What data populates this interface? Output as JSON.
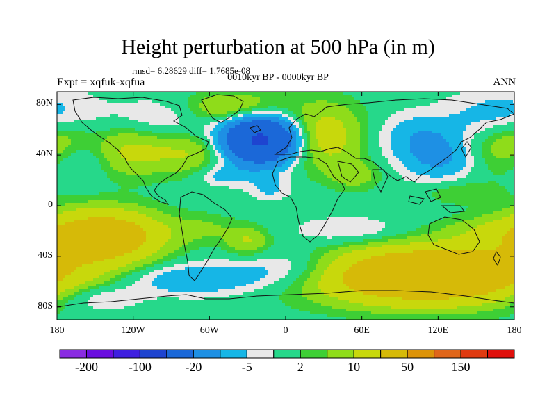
{
  "title": "Height perturbation at 500 hPa (in m)",
  "stats_line": "rmsd= 6.28629 diff= 1.7685e-08",
  "period": "0010kyr BP - 0000kyr BP",
  "experiment": "Expt = xqfuk-xqfua",
  "season": "ANN",
  "y_ticks": [
    "80N",
    "40N",
    "0",
    "40S",
    "80S"
  ],
  "x_ticks": [
    "180",
    "120W",
    "60W",
    "0",
    "60E",
    "120E",
    "180"
  ],
  "colorbar": {
    "colors": [
      "#8a2be2",
      "#6a0ddf",
      "#3f1fe0",
      "#1e44d0",
      "#1b68d8",
      "#1e90e4",
      "#16b6e6",
      "#e8e8e8",
      "#26d88a",
      "#3ecf35",
      "#8fdc1a",
      "#c8d80c",
      "#d6ba08",
      "#dc9308",
      "#e0661a",
      "#e03a10",
      "#e0100c"
    ],
    "labels": [
      "-200",
      "-100",
      "-20",
      "-5",
      "2",
      "10",
      "50",
      "150"
    ]
  },
  "anomaly_field": [
    {
      "lon": 170,
      "lat": 70,
      "sx": 30,
      "sy": 15,
      "a": -8
    },
    {
      "lon": -175,
      "lat": 52,
      "sx": 18,
      "sy": 12,
      "a": 8
    },
    {
      "lon": -160,
      "lat": 38,
      "sx": 18,
      "sy": 12,
      "a": -7
    },
    {
      "lon": -125,
      "lat": 43,
      "sx": 22,
      "sy": 14,
      "a": 12
    },
    {
      "lon": -95,
      "lat": 68,
      "sx": 28,
      "sy": 12,
      "a": -6
    },
    {
      "lon": -75,
      "lat": 42,
      "sx": 22,
      "sy": 12,
      "a": 10
    },
    {
      "lon": -40,
      "lat": 77,
      "sx": 28,
      "sy": 9,
      "a": 13
    },
    {
      "lon": -20,
      "lat": 52,
      "sx": 20,
      "sy": 13,
      "a": -55
    },
    {
      "lon": 30,
      "lat": 55,
      "sx": 22,
      "sy": 18,
      "a": 15
    },
    {
      "lon": -50,
      "lat": 24,
      "sx": 14,
      "sy": 6,
      "a": -7
    },
    {
      "lon": -12,
      "lat": 14,
      "sx": 12,
      "sy": 7,
      "a": -6
    },
    {
      "lon": 55,
      "lat": 24,
      "sx": 14,
      "sy": 8,
      "a": 7
    },
    {
      "lon": 105,
      "lat": 56,
      "sx": 24,
      "sy": 12,
      "a": -8
    },
    {
      "lon": 125,
      "lat": 37,
      "sx": 24,
      "sy": 12,
      "a": -12
    },
    {
      "lon": 160,
      "lat": 42,
      "sx": 22,
      "sy": 15,
      "a": 8
    },
    {
      "lon": 138,
      "lat": 10,
      "sx": 20,
      "sy": 6,
      "a": 5
    },
    {
      "lon": -145,
      "lat": -24,
      "sx": 32,
      "sy": 14,
      "a": 35
    },
    {
      "lon": -65,
      "lat": -18,
      "sx": 20,
      "sy": 8,
      "a": 5
    },
    {
      "lon": -30,
      "lat": -28,
      "sx": 12,
      "sy": 8,
      "a": 10
    },
    {
      "lon": -75,
      "lat": -58,
      "sx": 40,
      "sy": 9,
      "a": -10
    },
    {
      "lon": 10,
      "lat": -50,
      "sx": 35,
      "sy": 11,
      "a": -10
    },
    {
      "lon": 50,
      "lat": -20,
      "sx": 30,
      "sy": 8,
      "a": -6
    },
    {
      "lon": 110,
      "lat": -55,
      "sx": 60,
      "sy": 15,
      "a": 45
    },
    {
      "lon": 150,
      "lat": -20,
      "sx": 25,
      "sy": 8,
      "a": 5
    },
    {
      "lon": -150,
      "lat": -72,
      "sx": 25,
      "sy": 8,
      "a": -8
    }
  ]
}
